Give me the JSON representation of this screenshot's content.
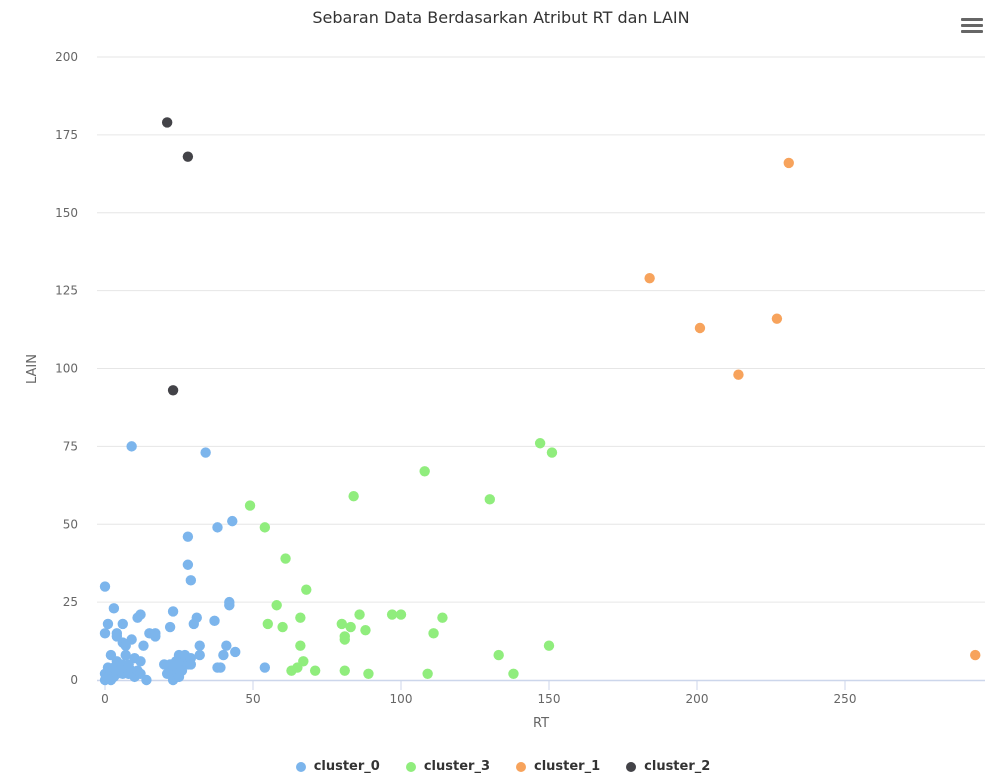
{
  "chart_data": {
    "type": "scatter",
    "title": "Sebaran Data Berdasarkan Atribut RT dan LAIN",
    "xlabel": "RT",
    "ylabel": "LAIN",
    "xlim": [
      -3,
      297
    ],
    "ylim": [
      0,
      200
    ],
    "xticks": [
      0,
      50,
      100,
      150,
      200,
      250
    ],
    "yticks": [
      0,
      25,
      50,
      75,
      100,
      125,
      150,
      175,
      200
    ],
    "grid": "horizontal",
    "legend_position": "bottom-center",
    "series": [
      {
        "name": "cluster_0",
        "color": "#7cb5ec",
        "points": [
          [
            0,
            30
          ],
          [
            0,
            15
          ],
          [
            1,
            18
          ],
          [
            3,
            23
          ],
          [
            4,
            15
          ],
          [
            4,
            14
          ],
          [
            6,
            18
          ],
          [
            6,
            12
          ],
          [
            7,
            11
          ],
          [
            9,
            13
          ],
          [
            11,
            20
          ],
          [
            12,
            21
          ],
          [
            13,
            11
          ],
          [
            15,
            15
          ],
          [
            17,
            15
          ],
          [
            17,
            14
          ],
          [
            9,
            75
          ],
          [
            34,
            73
          ],
          [
            38,
            49
          ],
          [
            43,
            51
          ],
          [
            28,
            46
          ],
          [
            28,
            37
          ],
          [
            29,
            32
          ],
          [
            23,
            22
          ],
          [
            22,
            17
          ],
          [
            42,
            25
          ],
          [
            42,
            24
          ],
          [
            31,
            20
          ],
          [
            30,
            18
          ],
          [
            37,
            19
          ],
          [
            32,
            11
          ],
          [
            32,
            8
          ],
          [
            41,
            11
          ],
          [
            44,
            9
          ],
          [
            40,
            8
          ],
          [
            38,
            4
          ],
          [
            39,
            4
          ],
          [
            54,
            4
          ],
          [
            0,
            2
          ],
          [
            0,
            0
          ],
          [
            1,
            1
          ],
          [
            1,
            4
          ],
          [
            2,
            8
          ],
          [
            2,
            3
          ],
          [
            2,
            0
          ],
          [
            3,
            1
          ],
          [
            3,
            4
          ],
          [
            4,
            6
          ],
          [
            4,
            2
          ],
          [
            5,
            3
          ],
          [
            6,
            5
          ],
          [
            6,
            2
          ],
          [
            7,
            8
          ],
          [
            7,
            4
          ],
          [
            8,
            2
          ],
          [
            8,
            5
          ],
          [
            9,
            3
          ],
          [
            10,
            1
          ],
          [
            10,
            7
          ],
          [
            11,
            3
          ],
          [
            12,
            6
          ],
          [
            12,
            2
          ],
          [
            14,
            0
          ],
          [
            20,
            5
          ],
          [
            22,
            5
          ],
          [
            22,
            3
          ],
          [
            23,
            0
          ],
          [
            23,
            4
          ],
          [
            24,
            2
          ],
          [
            25,
            8
          ],
          [
            25,
            1
          ],
          [
            26,
            5
          ],
          [
            27,
            8
          ],
          [
            27,
            6
          ],
          [
            28,
            5
          ],
          [
            29,
            7
          ],
          [
            29,
            5
          ],
          [
            24,
            6
          ],
          [
            26,
            3
          ],
          [
            21,
            2
          ]
        ]
      },
      {
        "name": "cluster_3",
        "color": "#90ed7d",
        "points": [
          [
            49,
            56
          ],
          [
            54,
            49
          ],
          [
            61,
            39
          ],
          [
            68,
            29
          ],
          [
            58,
            24
          ],
          [
            55,
            18
          ],
          [
            60,
            17
          ],
          [
            66,
            20
          ],
          [
            66,
            11
          ],
          [
            67,
            6
          ],
          [
            65,
            4
          ],
          [
            63,
            3
          ],
          [
            71,
            3
          ],
          [
            81,
            3
          ],
          [
            89,
            2
          ],
          [
            84,
            59
          ],
          [
            80,
            18
          ],
          [
            83,
            17
          ],
          [
            81,
            14
          ],
          [
            81,
            13
          ],
          [
            86,
            21
          ],
          [
            88,
            16
          ],
          [
            97,
            21
          ],
          [
            100,
            21
          ],
          [
            108,
            67
          ],
          [
            109,
            2
          ],
          [
            111,
            15
          ],
          [
            114,
            20
          ],
          [
            130,
            58
          ],
          [
            133,
            8
          ],
          [
            138,
            2
          ],
          [
            147,
            76
          ],
          [
            151,
            73
          ],
          [
            150,
            11
          ]
        ]
      },
      {
        "name": "cluster_1",
        "color": "#f7a35c",
        "points": [
          [
            184,
            129
          ],
          [
            201,
            113
          ],
          [
            214,
            98
          ],
          [
            227,
            116
          ],
          [
            231,
            166
          ],
          [
            294,
            8
          ]
        ]
      },
      {
        "name": "cluster_2",
        "color": "#434348",
        "points": [
          [
            21,
            179
          ],
          [
            28,
            168
          ],
          [
            23,
            93
          ]
        ]
      }
    ]
  },
  "ui": {
    "menu_icon": "hamburger-menu-icon"
  }
}
